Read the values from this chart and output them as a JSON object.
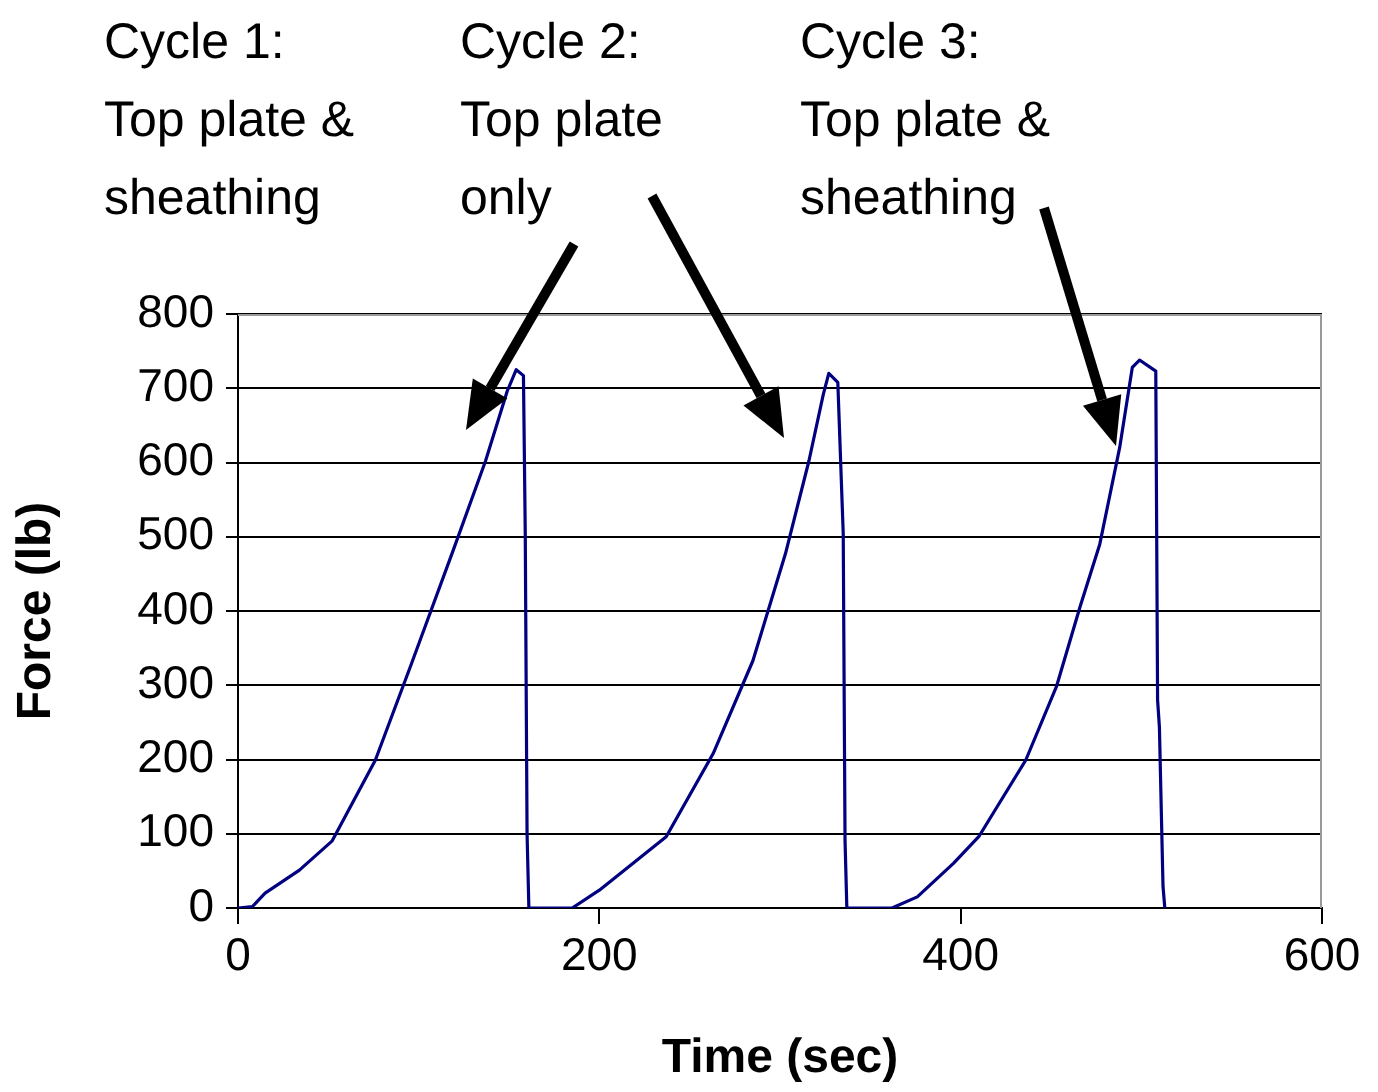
{
  "chart_data": {
    "type": "line",
    "xlabel": "Time (sec)",
    "ylabel": "Force (lb)",
    "xlim": [
      0,
      600
    ],
    "xticks": [
      0,
      200,
      400,
      600
    ],
    "ylim": [
      0,
      800
    ],
    "yticks": [
      0,
      100,
      200,
      300,
      400,
      500,
      600,
      700,
      800
    ],
    "grid": "y",
    "legend": false,
    "marker": "none",
    "line_style": "solid",
    "series": [
      {
        "color": "#000080",
        "x": [
          0,
          8,
          15,
          34,
          52,
          76,
          96,
          119,
          137,
          149,
          154,
          158,
          159,
          160,
          161,
          185,
          200,
          237,
          263,
          285,
          303,
          316,
          324,
          327,
          332,
          335,
          336,
          337,
          362,
          376,
          396,
          410,
          436,
          453,
          466,
          477,
          488,
          495,
          499,
          508,
          509,
          510,
          512,
          513
        ],
        "values": [
          0,
          2,
          20,
          51,
          90,
          199,
          329,
          481,
          602,
          696,
          725,
          717,
          504,
          100,
          0,
          0,
          24,
          96,
          208,
          333,
          477,
          602,
          692,
          720,
          708,
          504,
          91,
          0,
          0,
          15,
          60,
          96,
          199,
          298,
          405,
          490,
          620,
          728,
          738,
          723,
          280,
          244,
          29,
          0
        ]
      }
    ],
    "annotations": [
      "Cycle 1:\nTop plate &\nsheathing",
      "Cycle 2:\nTop plate\nonly",
      "Cycle 3:\nTop plate &\nsheathing"
    ]
  }
}
